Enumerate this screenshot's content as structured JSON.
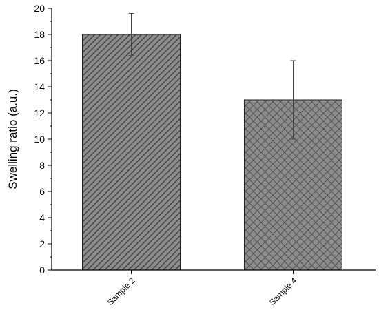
{
  "chart_data": {
    "type": "bar",
    "categories": [
      "Sample 2",
      "Sample 4"
    ],
    "values": [
      18,
      13
    ],
    "errors": [
      1.6,
      3.0
    ],
    "patterns": [
      "diagonal-hatch",
      "crosshatch"
    ],
    "xlabel": "",
    "ylabel": "Swelling ratio (a.u.)",
    "ylim": [
      0,
      20
    ],
    "yticks": [
      "0",
      "2",
      "4",
      "6",
      "8",
      "10",
      "12",
      "14",
      "16",
      "18",
      "20"
    ],
    "grid": false,
    "colors": {
      "bar_fill": "#8c8c8c",
      "hatch": "#3a3a3a",
      "axis": "#000000"
    }
  }
}
